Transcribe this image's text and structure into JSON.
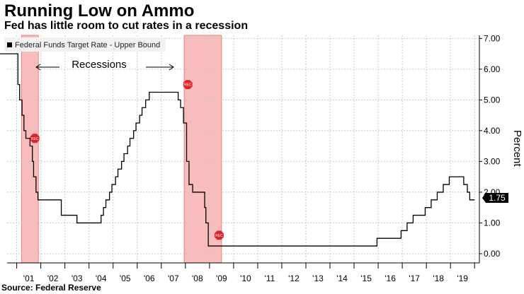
{
  "title": "Running Low on Ammo",
  "subtitle": "Fed has little room to cut rates in a recession",
  "source": "Source: Federal Reserve",
  "chart_data": {
    "type": "line",
    "series": [
      {
        "name": "Federal Funds Target Rate - Upper Bound",
        "color": "#000000",
        "points": [
          [
            2000.0,
            6.5
          ],
          [
            2001.0,
            6.5
          ],
          [
            2001.05,
            5.5
          ],
          [
            2001.12,
            5.0
          ],
          [
            2001.22,
            4.5
          ],
          [
            2001.3,
            4.0
          ],
          [
            2001.38,
            3.75
          ],
          [
            2001.55,
            3.5
          ],
          [
            2001.65,
            3.0
          ],
          [
            2001.7,
            2.5
          ],
          [
            2001.8,
            2.0
          ],
          [
            2001.88,
            1.75
          ],
          [
            2002.85,
            1.25
          ],
          [
            2003.5,
            1.0
          ],
          [
            2004.5,
            1.25
          ],
          [
            2004.6,
            1.5
          ],
          [
            2004.7,
            1.75
          ],
          [
            2004.85,
            2.0
          ],
          [
            2004.95,
            2.25
          ],
          [
            2005.1,
            2.5
          ],
          [
            2005.2,
            2.75
          ],
          [
            2005.35,
            3.0
          ],
          [
            2005.45,
            3.25
          ],
          [
            2005.6,
            3.5
          ],
          [
            2005.7,
            3.75
          ],
          [
            2005.85,
            4.0
          ],
          [
            2005.95,
            4.25
          ],
          [
            2006.1,
            4.5
          ],
          [
            2006.2,
            4.75
          ],
          [
            2006.35,
            5.0
          ],
          [
            2006.5,
            5.25
          ],
          [
            2007.7,
            5.0
          ],
          [
            2007.8,
            4.75
          ],
          [
            2007.92,
            4.25
          ],
          [
            2008.05,
            3.0
          ],
          [
            2008.15,
            2.25
          ],
          [
            2008.3,
            2.0
          ],
          [
            2008.8,
            1.5
          ],
          [
            2008.85,
            1.0
          ],
          [
            2008.95,
            0.25
          ],
          [
            2015.95,
            0.5
          ],
          [
            2016.95,
            0.75
          ],
          [
            2017.2,
            1.0
          ],
          [
            2017.45,
            1.25
          ],
          [
            2017.95,
            1.5
          ],
          [
            2018.2,
            1.75
          ],
          [
            2018.45,
            2.0
          ],
          [
            2018.7,
            2.25
          ],
          [
            2018.95,
            2.5
          ],
          [
            2019.55,
            2.25
          ],
          [
            2019.7,
            2.0
          ],
          [
            2019.8,
            1.75
          ],
          [
            2020.0,
            1.75
          ]
        ]
      }
    ],
    "recessions": [
      [
        2001.2,
        2001.9
      ],
      [
        2007.95,
        2009.5
      ]
    ],
    "recession_label": "Recessions",
    "badges": [
      {
        "x": 2001.75,
        "y": 3.75,
        "text": "REC"
      },
      {
        "x": 2008.1,
        "y": 5.5,
        "text": "REC"
      },
      {
        "x": 2009.4,
        "y": 0.6,
        "text": "REC"
      }
    ],
    "x_categories": [
      "'01",
      "'02",
      "'03",
      "'04",
      "'05",
      "'06",
      "'07",
      "'08",
      "'09",
      "'10",
      "'11",
      "'12",
      "'13",
      "'14",
      "'15",
      "'16",
      "'17",
      "'18",
      "'19"
    ],
    "xlim": [
      2000.6,
      2020.2
    ],
    "yticks": [
      "0.00",
      "1.00",
      "2.00",
      "3.00",
      "4.00",
      "5.00",
      "6.00",
      "7.00"
    ],
    "ylim": [
      -0.3,
      7.1
    ],
    "ylabel": "Percent",
    "last_value": "1.75",
    "legend": "Federal Funds Target Rate - Upper Bound",
    "grid": true
  },
  "colors": {
    "recession": "#f8bcbc",
    "recession_edge": "#f08080",
    "badge": "#d9252a",
    "grid": "#c8c8c8",
    "line": "#000000"
  }
}
